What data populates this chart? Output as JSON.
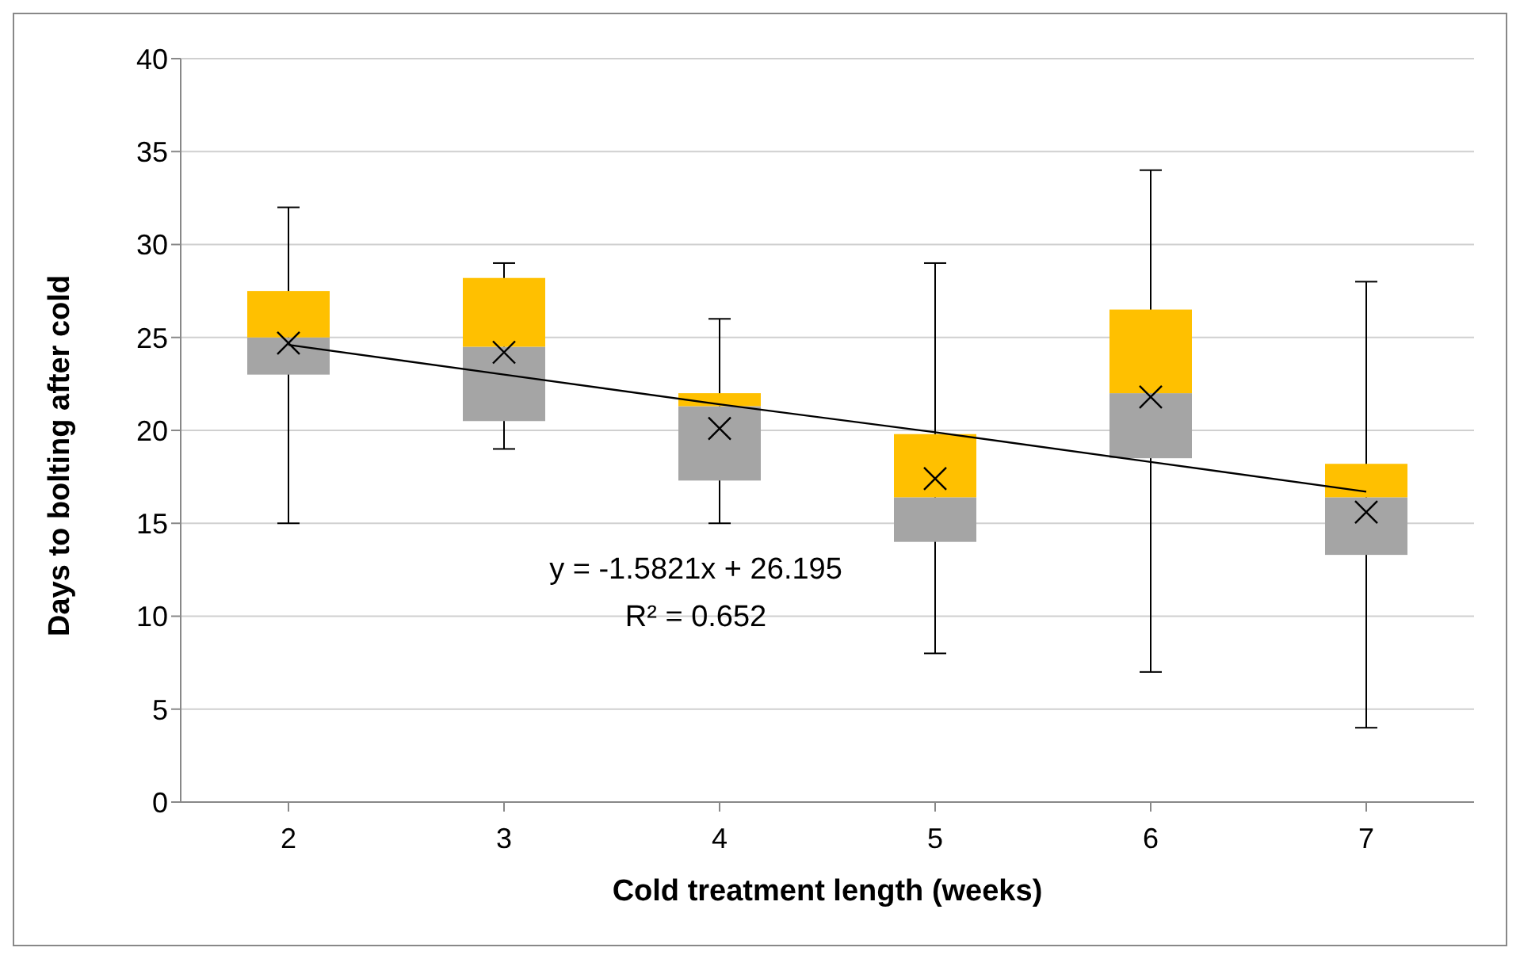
{
  "chart_data": {
    "type": "box",
    "xlabel": "Cold treatment length (weeks)",
    "ylabel": "Days to bolting after cold",
    "categories": [
      "2",
      "3",
      "4",
      "5",
      "6",
      "7"
    ],
    "ylim": [
      0,
      40
    ],
    "yticks": [
      0,
      5,
      10,
      15,
      20,
      25,
      30,
      35,
      40
    ],
    "grid": "y",
    "legend": false,
    "series": [
      {
        "colors": [
          [
            "#a5a5a5",
            "#ffc000"
          ],
          [
            "#a5a5a5",
            "#ffc000"
          ],
          [
            "#a5a5a5",
            "#ffc000"
          ],
          [
            "#a5a5a5",
            "#ffc000"
          ],
          [
            "#a5a5a5",
            "#ffc000"
          ],
          [
            "#a5a5a5",
            "#ffc000"
          ]
        ],
        "boxes": [
          {
            "low": 15,
            "q1": 23,
            "median": 25,
            "q3": 27.5,
            "high": 32,
            "mean": 24.7
          },
          {
            "low": 19,
            "q1": 20.5,
            "median": 24.5,
            "q3": 28.2,
            "high": 29,
            "mean": 24.2
          },
          {
            "low": 15,
            "q1": 17.3,
            "median": 21.3,
            "q3": 22,
            "high": 26,
            "mean": 20.1
          },
          {
            "low": 8,
            "q1": 14,
            "median": 16.4,
            "q3": 19.8,
            "high": 29,
            "mean": 17.4
          },
          {
            "low": 7,
            "q1": 18.5,
            "median": 22,
            "q3": 26.5,
            "high": 34,
            "mean": 21.8
          },
          {
            "low": 4,
            "q1": 13.3,
            "median": 16.4,
            "q3": 18.2,
            "high": 28,
            "mean": 15.6
          }
        ]
      },
      {
        "type": "line",
        "color": "#000000",
        "marker": "none",
        "x": [
          "2",
          "3",
          "4",
          "5",
          "6",
          "7"
        ],
        "values": [
          24.6,
          23.0,
          21.4,
          19.9,
          18.3,
          16.7
        ]
      }
    ],
    "annotations": [
      "y = -1.5821x + 26.195",
      "R² = 0.652"
    ]
  }
}
